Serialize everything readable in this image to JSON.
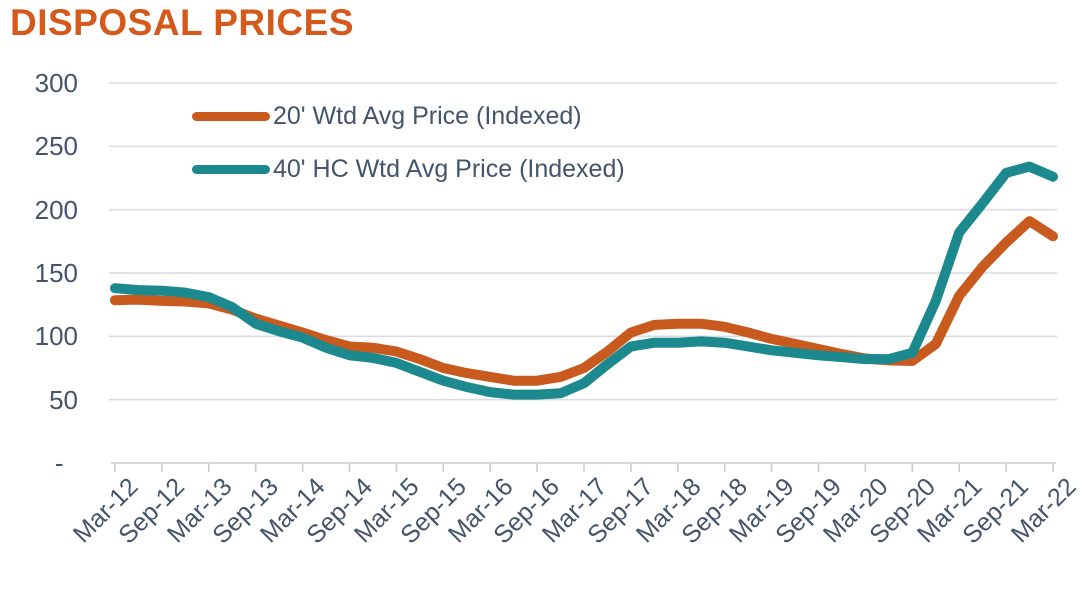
{
  "title": "DISPOSAL PRICES",
  "colors": {
    "title": "#D4591B",
    "series_20ft": "#C85A1E",
    "series_40ft_hc": "#1B898D",
    "axis_text": "#44546A",
    "gridline": "#D9DCE0",
    "axis_line": "#C8CCD2",
    "background": "#FFFFFF"
  },
  "legend": {
    "items": [
      {
        "label": "20' Wtd Avg Price (Indexed)"
      },
      {
        "label": "40' HC Wtd Avg Price (Indexed)"
      }
    ]
  },
  "y_axis": {
    "tick_labels": [
      "300",
      "250",
      "200",
      "150",
      "100",
      "50",
      "-"
    ],
    "min": 0,
    "max": 300,
    "step": 50
  },
  "x_axis": {
    "tick_labels": [
      "Mar-12",
      "Sep-12",
      "Mar-13",
      "Sep-13",
      "Mar-14",
      "Sep-14",
      "Mar-15",
      "Sep-15",
      "Mar-16",
      "Sep-16",
      "Mar-17",
      "Sep-17",
      "Mar-18",
      "Sep-18",
      "Mar-19",
      "Sep-19",
      "Mar-20",
      "Sep-20",
      "Mar-21",
      "Sep-21",
      "Mar-22"
    ]
  },
  "chart_data": {
    "type": "line",
    "title": "DISPOSAL PRICES",
    "categories": [
      "Mar-12",
      "Sep-12",
      "Mar-13",
      "Sep-13",
      "Mar-14",
      "Sep-14",
      "Mar-15",
      "Sep-15",
      "Mar-16",
      "Sep-16",
      "Mar-17",
      "Sep-17",
      "Mar-18",
      "Sep-18",
      "Mar-19",
      "Sep-19",
      "Mar-20",
      "Sep-20",
      "Mar-21",
      "Sep-21",
      "Mar-22"
    ],
    "series": [
      {
        "name": "20' Wtd Avg Price (Indexed)",
        "color": "#C85A1E",
        "values": [
          128.5,
          128,
          126,
          114,
          103,
          92,
          88,
          75,
          68,
          65,
          75,
          103,
          110,
          107.5,
          98,
          90,
          82.5,
          80.5,
          132,
          174,
          179
        ],
        "values_quarterly": [
          128.5,
          129,
          128,
          127.5,
          126,
          121,
          114,
          108.5,
          103,
          97,
          92,
          91,
          88,
          82,
          75,
          71,
          68,
          65,
          65,
          68,
          75,
          88,
          103,
          109,
          110,
          110,
          107.5,
          103,
          98,
          94,
          90,
          86,
          82.5,
          81,
          80.5,
          94,
          132,
          155,
          174,
          191,
          179
        ]
      },
      {
        "name": "40' HC Wtd Avg Price (Indexed)",
        "color": "#1B898D",
        "values": [
          138,
          136,
          131,
          110,
          99,
          85,
          79,
          65,
          56,
          54,
          63,
          92,
          95,
          95,
          89,
          85,
          82,
          87,
          182,
          229,
          226
        ],
        "values_quarterly": [
          138,
          136.5,
          136,
          134.5,
          131,
          123,
          110,
          104,
          99,
          91,
          85,
          83,
          79,
          72,
          65,
          60,
          56,
          54,
          54,
          55,
          63,
          78,
          92,
          95,
          95,
          96,
          95,
          92,
          89,
          87,
          85,
          83.5,
          82,
          82,
          87,
          128,
          182,
          205,
          229,
          234,
          226
        ]
      }
    ],
    "ylim": [
      0,
      300
    ],
    "y_step": 50,
    "grid": "horizontal",
    "legend_position": "top-left-inside",
    "sampling_note": "quarterly data points between semi-annual axis labels"
  }
}
